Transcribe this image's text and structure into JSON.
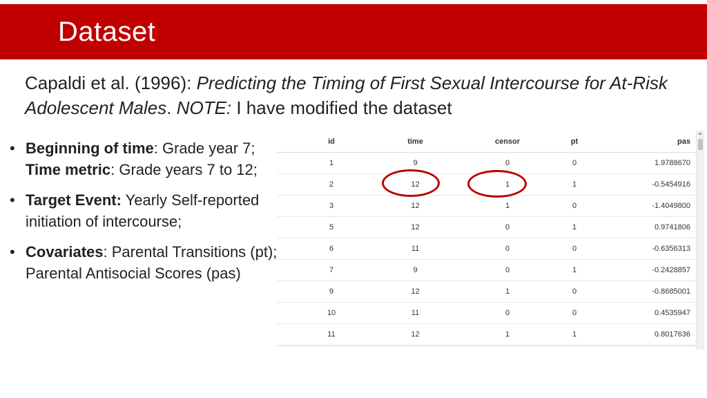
{
  "slide": {
    "title": "Dataset",
    "citation": {
      "authors": "Capaldi et al. (1996): ",
      "paper_title": "Predicting the Timing of First Sexual Intercourse for At-Risk Adolescent Males",
      "separator": ". ",
      "note_label": "NOTE:",
      "note_text": " I have modified the dataset"
    },
    "bullets": [
      {
        "label1": "Beginning of time",
        "text1": ": Grade year 7; ",
        "label2": "Time metric",
        "text2": ": Grade years 7 to 12;"
      },
      {
        "label1": "Target Event:",
        "text1": " Yearly Self-reported initiation of intercourse;"
      },
      {
        "label1": "Covariates",
        "text1": ": Parental Transitions (pt); Parental Antisocial Scores (pas)"
      }
    ],
    "bullet_symbol": "•"
  },
  "table": {
    "columns": [
      "id",
      "time",
      "censor",
      "pt",
      "pas"
    ],
    "rows": [
      [
        "1",
        "9",
        "0",
        "0",
        "1.9788670"
      ],
      [
        "2",
        "12",
        "1",
        "1",
        "-0.5454916"
      ],
      [
        "3",
        "12",
        "1",
        "0",
        "-1.4049800"
      ],
      [
        "5",
        "12",
        "0",
        "1",
        "0.9741806"
      ],
      [
        "6",
        "11",
        "0",
        "0",
        "-0.6356313"
      ],
      [
        "7",
        "9",
        "0",
        "1",
        "-0.2428857"
      ],
      [
        "9",
        "12",
        "1",
        "0",
        "-0.8685001"
      ],
      [
        "10",
        "11",
        "0",
        "0",
        "0.4535947"
      ],
      [
        "11",
        "12",
        "1",
        "1",
        "0.8017636"
      ]
    ]
  },
  "colors": {
    "title_bar": "#c00000",
    "highlight_circle": "#b80000"
  }
}
